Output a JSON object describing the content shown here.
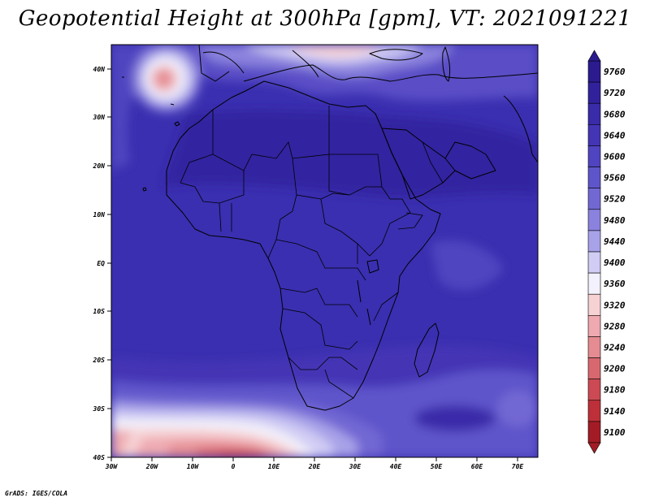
{
  "title": "Geopotential Height at 300hPa [gpm], VT: 2021091221",
  "credit": "GrADS: IGES/COLA",
  "map": {
    "lat_labels": [
      "40N",
      "30N",
      "20N",
      "10N",
      "EQ",
      "10S",
      "20S",
      "30S",
      "40S"
    ],
    "lon_labels": [
      "30W",
      "20W",
      "10W",
      "0",
      "10E",
      "20E",
      "30E",
      "40E",
      "50E",
      "60E",
      "70E"
    ]
  },
  "colorbar": {
    "labels": [
      "9760",
      "9720",
      "9680",
      "9640",
      "9600",
      "9560",
      "9520",
      "9480",
      "9440",
      "9400",
      "9360",
      "9320",
      "9280",
      "9240",
      "9200",
      "9180",
      "9140",
      "9100"
    ],
    "colors": [
      "#2b1b8f",
      "#31229c",
      "#3a2ba9",
      "#4435b5",
      "#5044c0",
      "#5f55ca",
      "#7268d3",
      "#8a82dd",
      "#a8a2e8",
      "#d0ccf4",
      "#f3f1fb",
      "#f6d2d4",
      "#eeaab0",
      "#e48c92",
      "#d8686f",
      "#cc4a53",
      "#be3039",
      "#a31c25"
    ]
  }
}
